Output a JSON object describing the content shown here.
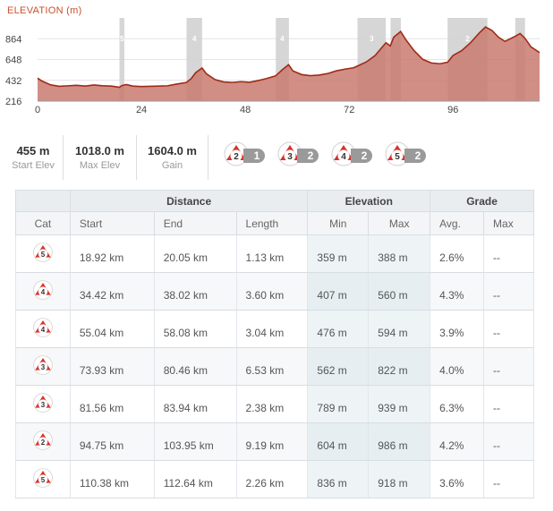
{
  "chart": {
    "title": "ELEVATION",
    "unit": "(m)"
  },
  "chart_data": {
    "type": "area",
    "title": "ELEVATION (m)",
    "xlabel": "",
    "ylabel": "",
    "x_ticks": [
      "0",
      "24",
      "48",
      "72",
      "96"
    ],
    "y_ticks": [
      "864",
      "648",
      "432",
      "216"
    ],
    "xlim": [
      0,
      116
    ],
    "ylim": [
      216,
      1080
    ],
    "series": [
      {
        "x": [
          0,
          1,
          3,
          5,
          7,
          9,
          11,
          13,
          15,
          17,
          18.9,
          19.5,
          20.5,
          22,
          24,
          26,
          28,
          30,
          32,
          34.4,
          35.5,
          36.5,
          38,
          39,
          41,
          43,
          45,
          47,
          49,
          51,
          53,
          55,
          56.5,
          58,
          59,
          61,
          63,
          65,
          67,
          69,
          71,
          73,
          74,
          76,
          78,
          79.5,
          80.5,
          81.5,
          82.3,
          83.9,
          85,
          87,
          89,
          91,
          93,
          94.75,
          96,
          98,
          100,
          102,
          103.5,
          105,
          106.5,
          108,
          110.4,
          111.5,
          112.6,
          114,
          116
        ],
        "y": [
          455,
          425,
          385,
          370,
          375,
          380,
          372,
          384,
          376,
          372,
          360,
          378,
          388,
          372,
          368,
          370,
          372,
          375,
          392,
          410,
          450,
          510,
          560,
          500,
          440,
          415,
          410,
          418,
          412,
          430,
          452,
          478,
          540,
          594,
          530,
          492,
          480,
          486,
          502,
          530,
          548,
          562,
          582,
          624,
          690,
          770,
          822,
          789,
          880,
          939,
          860,
          740,
          650,
          612,
          604,
          620,
          690,
          740,
          820,
          920,
          986,
          950,
          880,
          836,
          890,
          918,
          870,
          780,
          720
        ],
        "fill": "#c97a6e",
        "line": "#a02a18"
      }
    ],
    "climb_bands": [
      {
        "start": 18.92,
        "end": 20.05,
        "label": "5"
      },
      {
        "start": 34.42,
        "end": 38.02,
        "label": "4"
      },
      {
        "start": 55.04,
        "end": 58.08,
        "label": "4"
      },
      {
        "start": 73.93,
        "end": 80.46,
        "label": "3"
      },
      {
        "start": 81.56,
        "end": 83.94,
        "label": "3"
      },
      {
        "start": 94.75,
        "end": 103.95,
        "label": "2"
      },
      {
        "start": 110.38,
        "end": 112.64,
        "label": "5"
      }
    ],
    "grid": true,
    "legend": "none"
  },
  "stats": [
    {
      "value": "455 m",
      "label": "Start Elev"
    },
    {
      "value": "1018.0 m",
      "label": "Max Elev"
    },
    {
      "value": "1604.0 m",
      "label": "Gain"
    }
  ],
  "cat_counts": [
    {
      "cat": "2",
      "count": "1"
    },
    {
      "cat": "3",
      "count": "2"
    },
    {
      "cat": "4",
      "count": "2"
    },
    {
      "cat": "5",
      "count": "2"
    }
  ],
  "table": {
    "groups": {
      "distance": "Distance",
      "elevation": "Elevation",
      "grade": "Grade"
    },
    "columns": {
      "cat": "Cat",
      "start": "Start",
      "end": "End",
      "length": "Length",
      "min": "Min",
      "max": "Max",
      "avg": "Avg.",
      "gmax": "Max"
    },
    "rows": [
      {
        "cat": "5",
        "start": "18.92 km",
        "end": "20.05 km",
        "length": "1.13 km",
        "min": "359 m",
        "max": "388 m",
        "avg": "2.6%",
        "gmax": "--"
      },
      {
        "cat": "4",
        "start": "34.42 km",
        "end": "38.02 km",
        "length": "3.60 km",
        "min": "407 m",
        "max": "560 m",
        "avg": "4.3%",
        "gmax": "--"
      },
      {
        "cat": "4",
        "start": "55.04 km",
        "end": "58.08 km",
        "length": "3.04 km",
        "min": "476 m",
        "max": "594 m",
        "avg": "3.9%",
        "gmax": "--"
      },
      {
        "cat": "3",
        "start": "73.93 km",
        "end": "80.46 km",
        "length": "6.53 km",
        "min": "562 m",
        "max": "822 m",
        "avg": "4.0%",
        "gmax": "--"
      },
      {
        "cat": "3",
        "start": "81.56 km",
        "end": "83.94 km",
        "length": "2.38 km",
        "min": "789 m",
        "max": "939 m",
        "avg": "6.3%",
        "gmax": "--"
      },
      {
        "cat": "2",
        "start": "94.75 km",
        "end": "103.95 km",
        "length": "9.19 km",
        "min": "604 m",
        "max": "986 m",
        "avg": "4.2%",
        "gmax": "--"
      },
      {
        "cat": "5",
        "start": "110.38 km",
        "end": "112.64 km",
        "length": "2.26 km",
        "min": "836 m",
        "max": "918 m",
        "avg": "3.6%",
        "gmax": "--"
      }
    ]
  },
  "colors": {
    "accent": "#c8502a",
    "badge_red": "#d9312a",
    "count_grey": "#9a9a9a"
  },
  "icons": {
    "category_badge": "climb-category-icon"
  }
}
